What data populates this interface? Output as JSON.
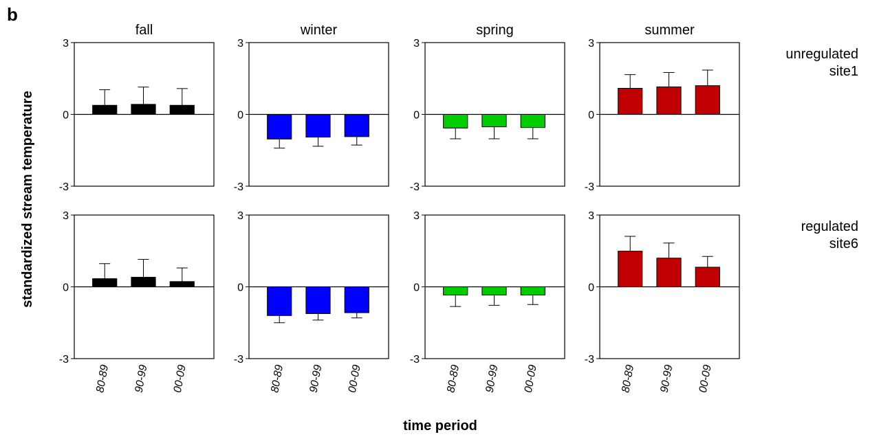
{
  "panel_label": "b",
  "ylabel": "standardized stream temperature",
  "xlabel": "time period",
  "chart_data": [
    {
      "type": "bar",
      "title": "fall",
      "values": [
        0.38,
        0.42,
        0.38
      ],
      "errors": [
        0.65,
        0.72,
        0.7
      ],
      "color": "#000000",
      "ylim": [
        -3,
        3
      ],
      "yticks": [
        -3,
        0,
        3
      ]
    },
    {
      "type": "bar",
      "title": "winter",
      "values": [
        -1.03,
        -0.95,
        -0.93
      ],
      "errors": [
        0.38,
        0.38,
        0.35
      ],
      "color": "#0000ff",
      "ylim": [
        -3,
        3
      ],
      "yticks": [
        -3,
        0,
        3
      ]
    },
    {
      "type": "bar",
      "title": "spring",
      "values": [
        -0.57,
        -0.52,
        -0.55
      ],
      "errors": [
        0.45,
        0.5,
        0.47
      ],
      "color": "#00cc00",
      "ylim": [
        -3,
        3
      ],
      "yticks": [
        -3,
        0,
        3
      ]
    },
    {
      "type": "bar",
      "title": "summer",
      "values": [
        1.09,
        1.15,
        1.2
      ],
      "errors": [
        0.57,
        0.6,
        0.65
      ],
      "color": "#c00000",
      "ylim": [
        -3,
        3
      ],
      "yticks": [
        -3,
        0,
        3
      ],
      "row_label": [
        "unregulated",
        "site1"
      ]
    },
    {
      "type": "bar",
      "categories": [
        "80-89",
        "90-99",
        "00-09"
      ],
      "values": [
        0.34,
        0.4,
        0.22
      ],
      "errors": [
        0.63,
        0.75,
        0.57
      ],
      "color": "#000000",
      "ylim": [
        -3,
        3
      ],
      "yticks": [
        -3,
        0,
        3
      ]
    },
    {
      "type": "bar",
      "categories": [
        "80-89",
        "90-99",
        "00-09"
      ],
      "values": [
        -1.2,
        -1.12,
        -1.08
      ],
      "errors": [
        0.3,
        0.27,
        0.22
      ],
      "color": "#0000ff",
      "ylim": [
        -3,
        3
      ],
      "yticks": [
        -3,
        0,
        3
      ]
    },
    {
      "type": "bar",
      "categories": [
        "80-89",
        "90-99",
        "00-09"
      ],
      "values": [
        -0.34,
        -0.34,
        -0.34
      ],
      "errors": [
        0.48,
        0.43,
        0.4
      ],
      "color": "#00cc00",
      "ylim": [
        -3,
        3
      ],
      "yticks": [
        -3,
        0,
        3
      ]
    },
    {
      "type": "bar",
      "categories": [
        "80-89",
        "90-99",
        "00-09"
      ],
      "values": [
        1.49,
        1.2,
        0.82
      ],
      "errors": [
        0.62,
        0.63,
        0.45
      ],
      "color": "#c00000",
      "ylim": [
        -3,
        3
      ],
      "yticks": [
        -3,
        0,
        3
      ],
      "row_label": [
        "regulated",
        "site6"
      ]
    }
  ]
}
